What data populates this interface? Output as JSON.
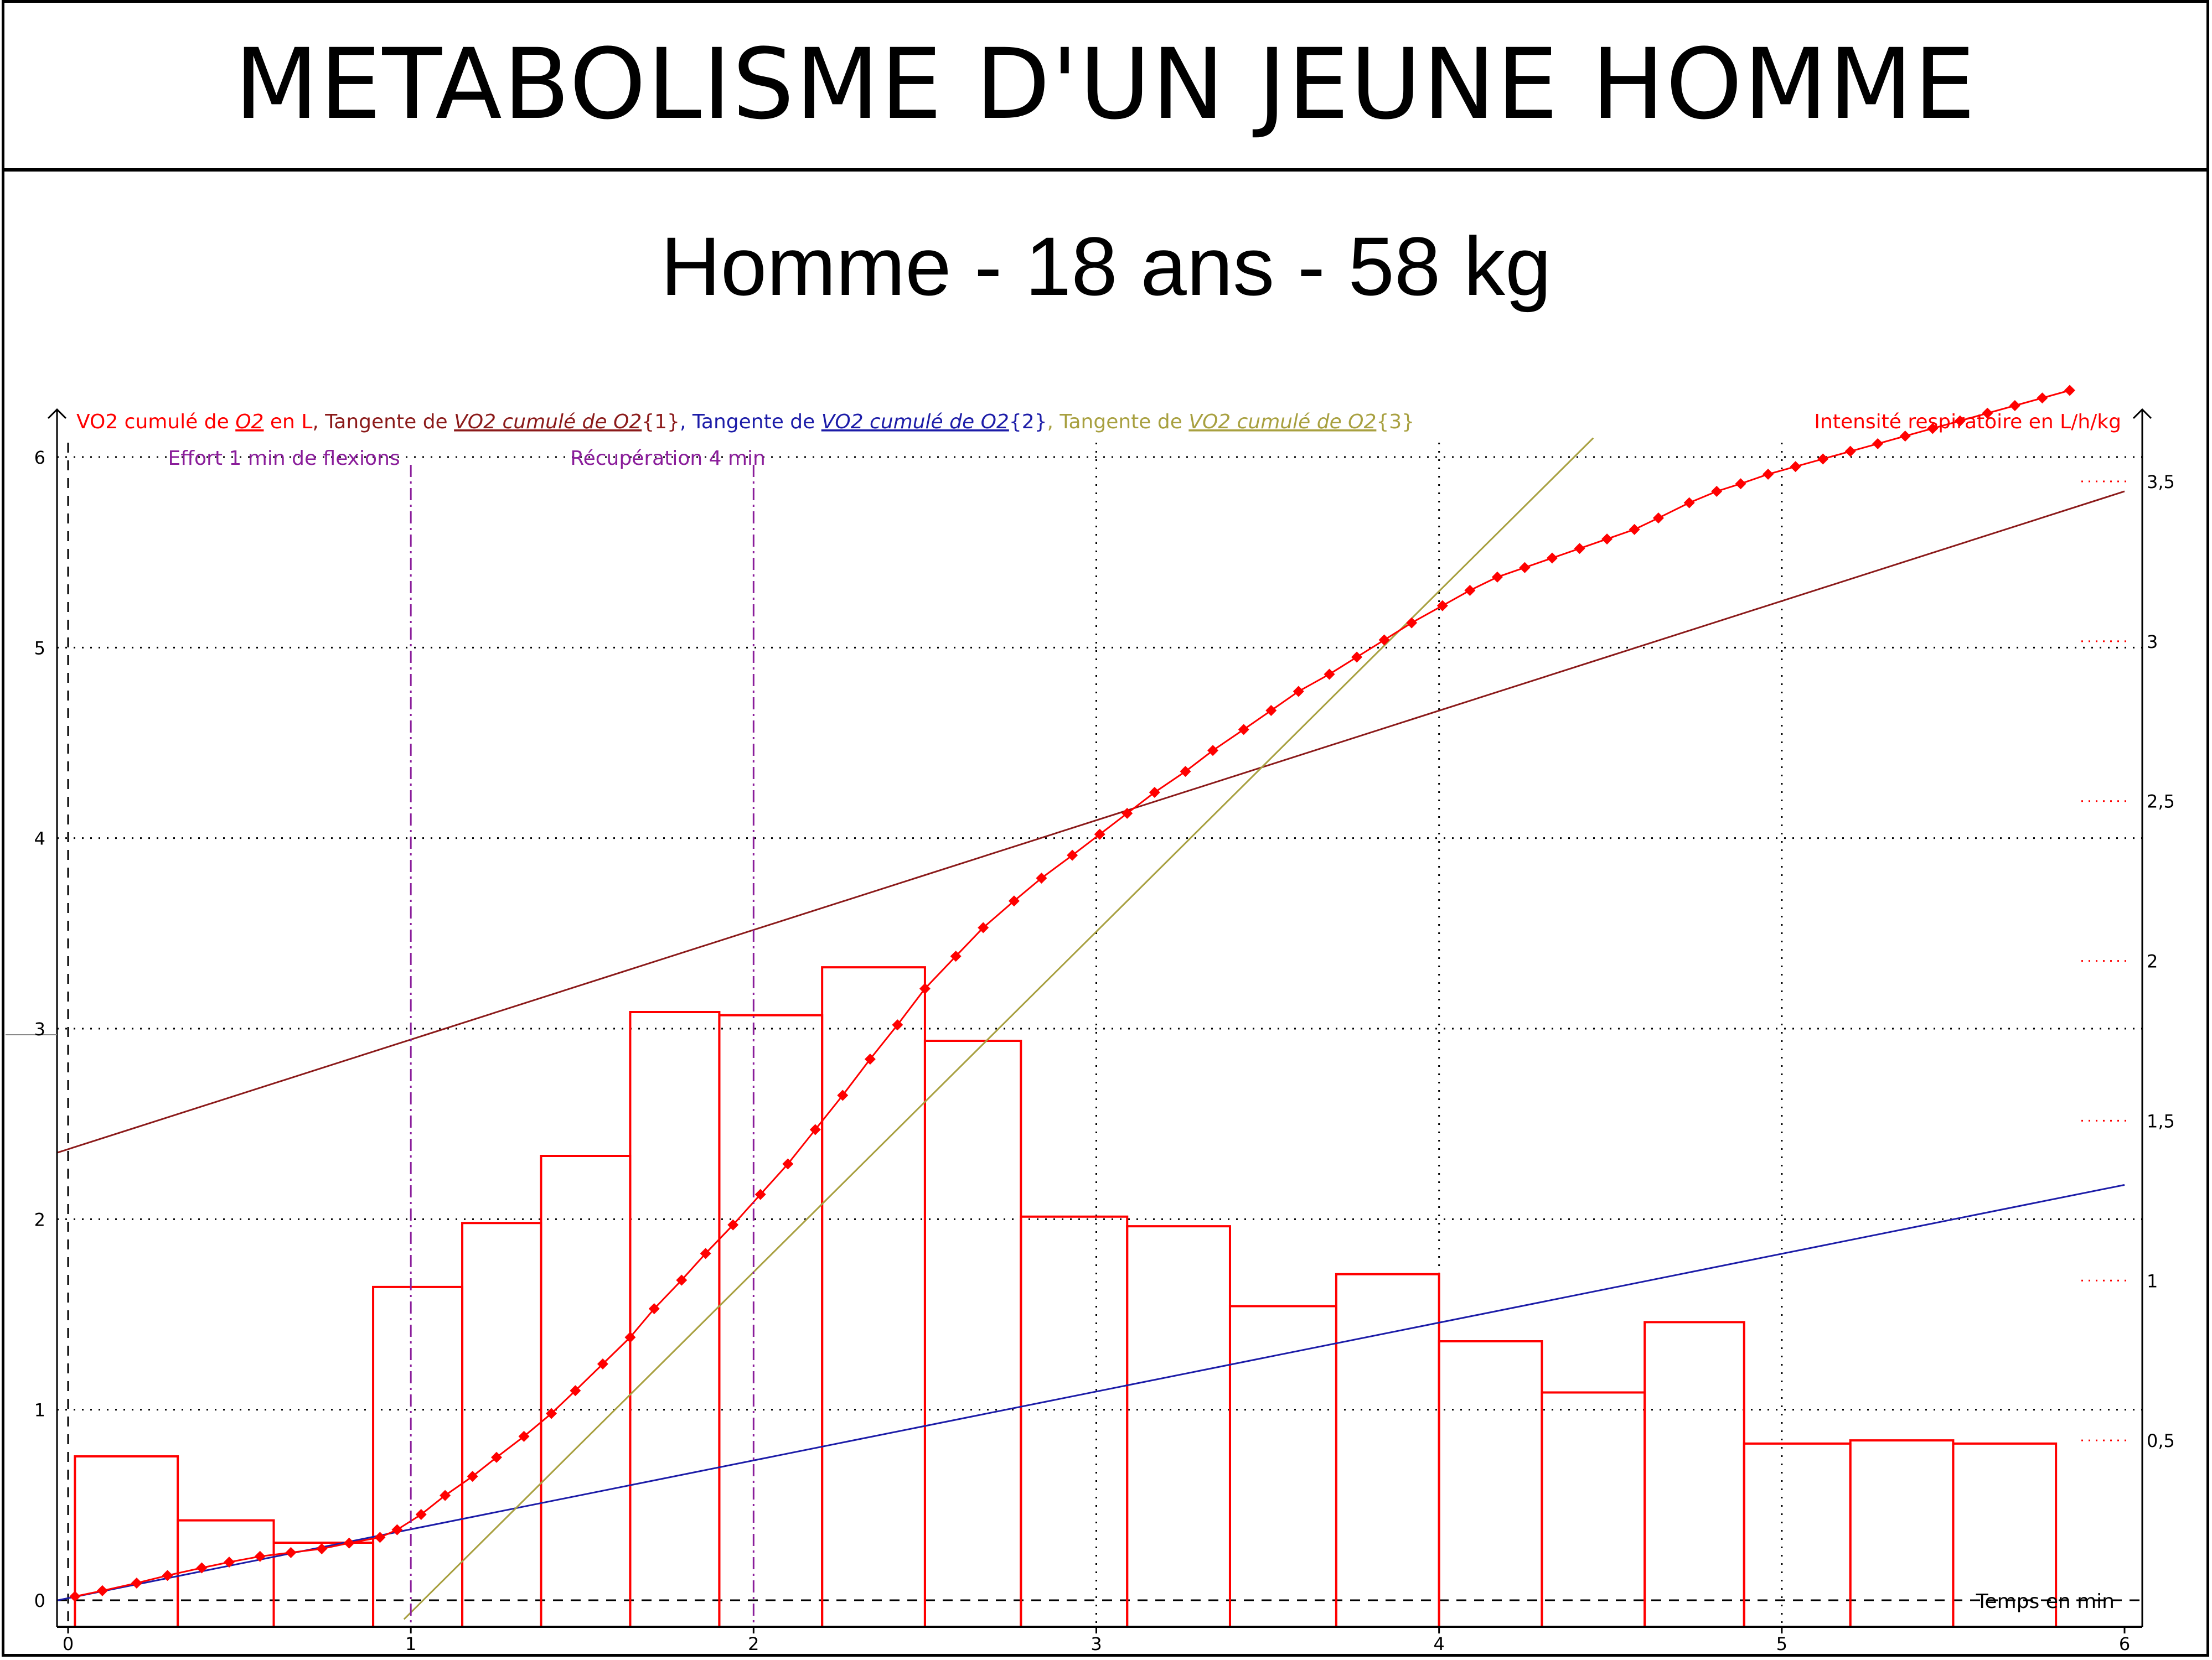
{
  "title": "METABOLISME D'UN JEUNE HOMME",
  "subtitle": "Homme - 18 ans - 58 kg",
  "colors": {
    "vo2": "#ff0000",
    "tangent1": "#8b1a1a",
    "tangent2": "#1c1ca8",
    "tangent3": "#a8a040",
    "annotation": "#8a1d9a",
    "grid": "#000000"
  },
  "legend": {
    "left": [
      {
        "text": "VO2 cumulé de ",
        "color": "#ff0000",
        "underline": false
      },
      {
        "text": "O2",
        "color": "#ff0000",
        "underline": true
      },
      {
        "text": " en L",
        "color": "#ff0000",
        "underline": false
      },
      {
        "text": ", Tangente de ",
        "color": "#8b1a1a",
        "underline": false
      },
      {
        "text": "VO2 cumulé de O2",
        "color": "#8b1a1a",
        "underline": true
      },
      {
        "text": "{1}",
        "color": "#8b1a1a",
        "underline": false
      },
      {
        "text": ", Tangente de ",
        "color": "#1c1ca8",
        "underline": false
      },
      {
        "text": "VO2 cumulé de O2",
        "color": "#1c1ca8",
        "underline": true
      },
      {
        "text": "{2}",
        "color": "#1c1ca8",
        "underline": false
      },
      {
        "text": ", Tangente de ",
        "color": "#a8a040",
        "underline": false
      },
      {
        "text": "VO2 cumulé de O2",
        "color": "#a8a040",
        "underline": true
      },
      {
        "text": "{3}",
        "color": "#a8a040",
        "underline": false
      }
    ],
    "right": "Intensité respiratoire en L/h/kg"
  },
  "chart_data": {
    "type": "line",
    "xlabel": "Temps en min",
    "ylabel": "VO2 cumulé de O2 en L",
    "y2label": "Intensité respiratoire en L/h/kg",
    "xlim": [
      -0.03,
      6
    ],
    "ylim": [
      -0.25,
      6.1
    ],
    "y2lim": [
      0,
      3.6
    ],
    "xticks": [
      "0",
      "1",
      "2",
      "3",
      "4",
      "5",
      "6"
    ],
    "yticks": [
      "0",
      "1",
      "2",
      "3",
      "4",
      "5",
      "6"
    ],
    "y2ticks": [
      "0,5",
      "1",
      "1,5",
      "2",
      "2,5",
      "3",
      "3,5"
    ],
    "grid": true,
    "annotations": [
      {
        "label": "Effort 1 min de flexions",
        "x": 1.0
      },
      {
        "label": "Récupération 4 min",
        "x": 2.0
      }
    ],
    "vo2_series": {
      "name": "VO2 cumulé de O2",
      "x": [
        0.02,
        0.1,
        0.2,
        0.29,
        0.39,
        0.47,
        0.56,
        0.65,
        0.74,
        0.82,
        0.91,
        0.96,
        1.03,
        1.1,
        1.18,
        1.25,
        1.33,
        1.41,
        1.48,
        1.56,
        1.64,
        1.71,
        1.79,
        1.86,
        1.94,
        2.02,
        2.1,
        2.18,
        2.26,
        2.34,
        2.42,
        2.5,
        2.59,
        2.67,
        2.76,
        2.84,
        2.93,
        3.01,
        3.09,
        3.17,
        3.26,
        3.34,
        3.43,
        3.51,
        3.59,
        3.68,
        3.76,
        3.84,
        3.92,
        4.01,
        4.09,
        4.17,
        4.25,
        4.33,
        4.41,
        4.49,
        4.57,
        4.64,
        4.73,
        4.81,
        4.88,
        4.96,
        5.04,
        5.12,
        5.2,
        5.28,
        5.36,
        5.44,
        5.52,
        5.6,
        5.68,
        5.76,
        5.84
      ],
      "y": [
        0.02,
        0.05,
        0.09,
        0.13,
        0.17,
        0.2,
        0.23,
        0.25,
        0.27,
        0.3,
        0.33,
        0.37,
        0.45,
        0.55,
        0.65,
        0.75,
        0.86,
        0.98,
        1.1,
        1.24,
        1.38,
        1.53,
        1.68,
        1.82,
        1.97,
        2.13,
        2.29,
        2.47,
        2.65,
        2.84,
        3.02,
        3.21,
        3.38,
        3.53,
        3.67,
        3.79,
        3.91,
        4.02,
        4.13,
        4.24,
        4.35,
        4.46,
        4.57,
        4.67,
        4.77,
        4.86,
        4.95,
        5.04,
        5.13,
        5.22,
        5.3,
        5.37,
        5.42,
        5.47,
        5.52,
        5.57,
        5.62,
        5.68,
        5.76,
        5.82,
        5.86,
        5.91,
        5.95,
        5.99,
        6.03,
        6.07,
        6.11,
        6.15,
        6.19,
        6.23,
        6.27,
        6.31,
        6.35
      ]
    },
    "intensity_bars": {
      "name": "Intensité respiratoire en L/h/kg",
      "x0": [
        0.02,
        0.32,
        0.6,
        0.89,
        1.15,
        1.38,
        1.64,
        1.9,
        2.2,
        2.5,
        2.78,
        3.09,
        3.39,
        3.7,
        4.0,
        4.3,
        4.6,
        4.89,
        5.2,
        5.5
      ],
      "x1": [
        0.32,
        0.6,
        0.89,
        1.15,
        1.38,
        1.64,
        1.9,
        2.2,
        2.5,
        2.78,
        3.09,
        3.39,
        3.7,
        4.0,
        4.3,
        4.6,
        4.89,
        5.2,
        5.5,
        5.8
      ],
      "values": [
        0.45,
        0.25,
        0.18,
        0.98,
        1.18,
        1.39,
        1.84,
        1.83,
        1.98,
        1.75,
        1.2,
        1.17,
        0.92,
        1.02,
        0.81,
        0.65,
        0.87,
        0.49,
        0.5,
        0.49
      ]
    },
    "tangents": [
      {
        "name": "Tangente de VO2 cumulé de O2{1}",
        "x": [
          -0.03,
          6.0
        ],
        "y": [
          2.35,
          5.82
        ]
      },
      {
        "name": "Tangente de VO2 cumulé de O2{2}",
        "x": [
          -0.03,
          6.0
        ],
        "y": [
          0.0,
          2.18
        ]
      },
      {
        "name": "Tangente de VO2 cumulé de O2{3}",
        "x": [
          0.98,
          4.45
        ],
        "y": [
          -0.1,
          6.1
        ]
      }
    ]
  }
}
